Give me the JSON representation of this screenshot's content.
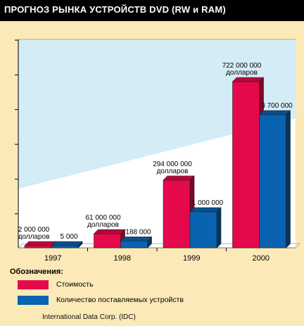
{
  "title": "ПРОГНОЗ РЫНКА УСТРОЙСТВ DVD (RW и RAM)",
  "legend": {
    "title": "Обозначения:",
    "items": [
      {
        "label": "Стоимость",
        "color": "#e5094b"
      },
      {
        "label": "Количество поставляемых устройств",
        "color": "#0a63b0"
      }
    ]
  },
  "source": "International Data Corp. (IDC)",
  "chart_data": {
    "type": "bar",
    "categories": [
      "1997",
      "1998",
      "1999",
      "2000"
    ],
    "series": [
      {
        "color": "#e5094b",
        "values": [
          2000000,
          61000000,
          294000000,
          722000000
        ],
        "labels": [
          [
            "2 000 000",
            "долларов"
          ],
          [
            "61 000 000",
            "долларов"
          ],
          [
            "294 000 000",
            "долларов"
          ],
          [
            "722 000 000",
            "долларов"
          ]
        ]
      },
      {
        "color": "#0a63b0",
        "values": [
          5000,
          188000,
          1000000,
          3700000
        ],
        "labels": [
          [
            "5 000"
          ],
          [
            "188 000"
          ],
          [
            "1 000 000"
          ],
          [
            "3 700 000"
          ]
        ]
      }
    ],
    "legend_position": "bottom-left",
    "grid": false
  }
}
